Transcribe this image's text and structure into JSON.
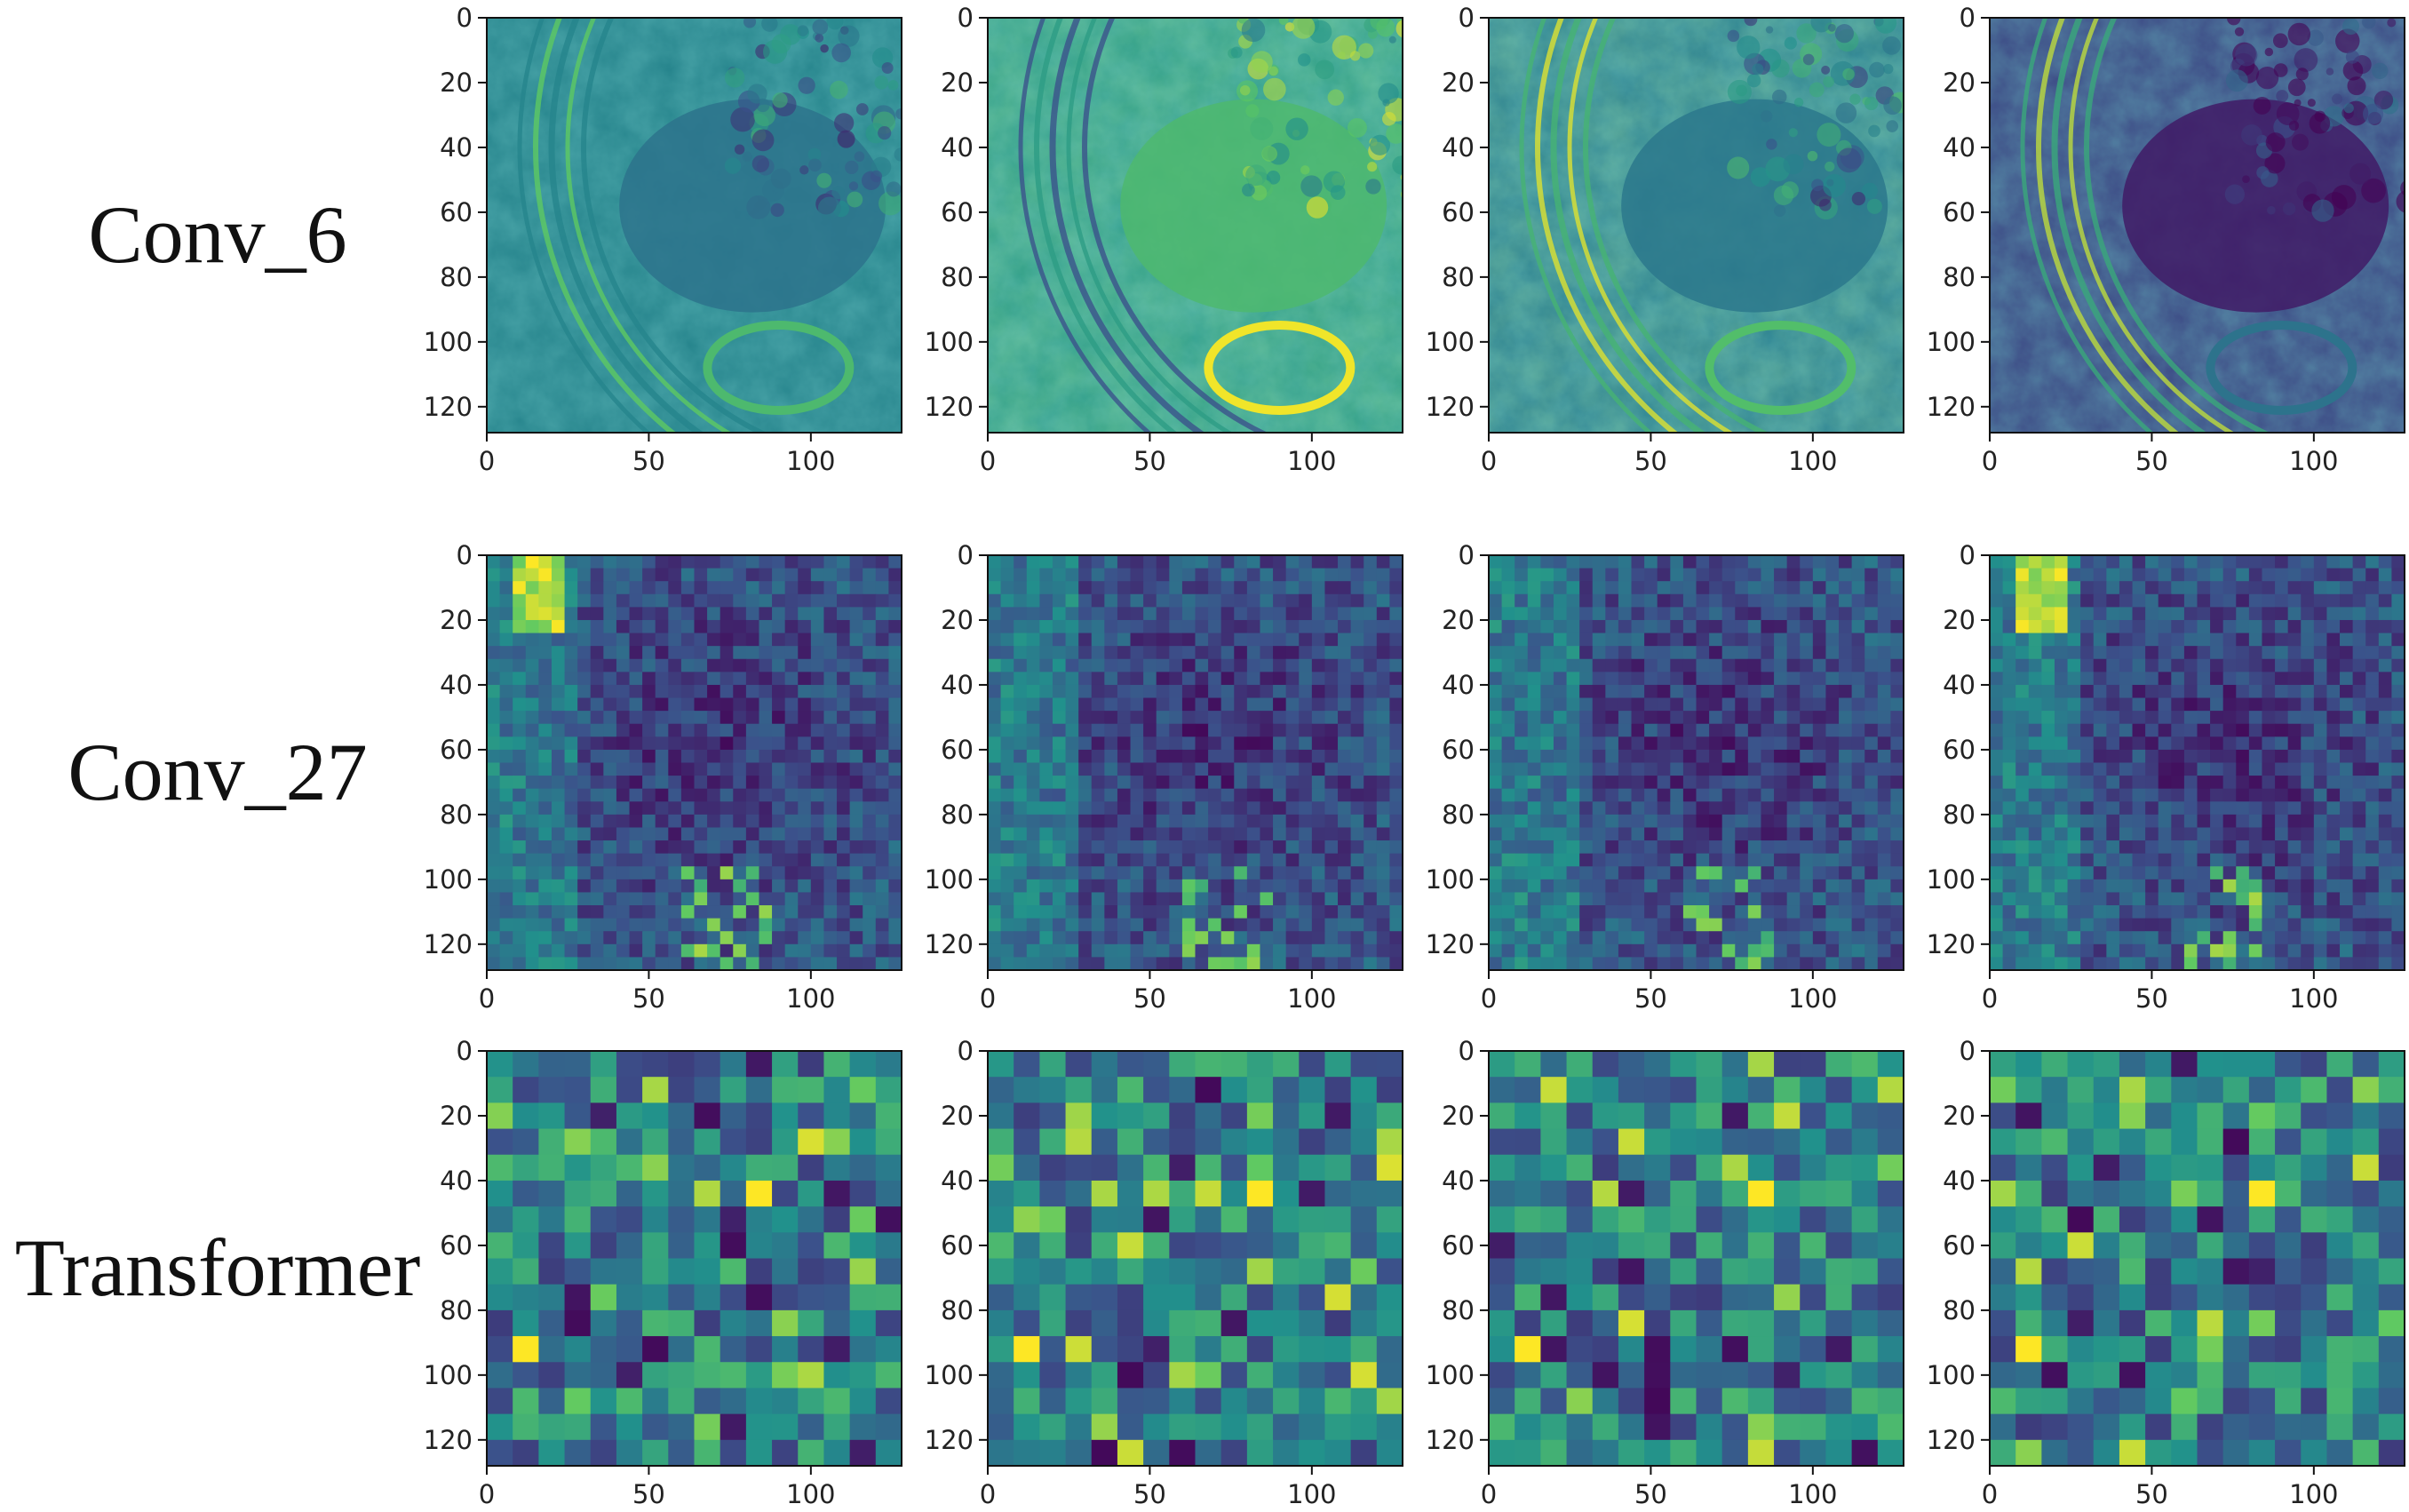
{
  "rows": [
    {
      "label": "Conv_6"
    },
    {
      "label": "Conv_27"
    },
    {
      "label": "Transformer"
    }
  ],
  "chart_data": {
    "type": "heatmap",
    "layout": {
      "rows": 3,
      "cols": 4
    },
    "colormap": "viridis",
    "colors": [
      "#440154",
      "#3b528b",
      "#21918c",
      "#5ec962",
      "#fde725"
    ],
    "xlim": [
      0,
      128
    ],
    "ylim": [
      128,
      0
    ],
    "x_ticks": [
      "0",
      "50",
      "100"
    ],
    "x_tick_values": [
      0,
      50,
      100
    ],
    "y_ticks": [
      "0",
      "20",
      "40",
      "60",
      "80",
      "100",
      "120"
    ],
    "y_tick_values": [
      0,
      20,
      40,
      60,
      80,
      100,
      120
    ],
    "grid": false,
    "row_labels": [
      "Conv_6",
      "Conv_27",
      "Transformer"
    ],
    "grid_resolution": [
      1,
      32,
      16
    ]
  }
}
